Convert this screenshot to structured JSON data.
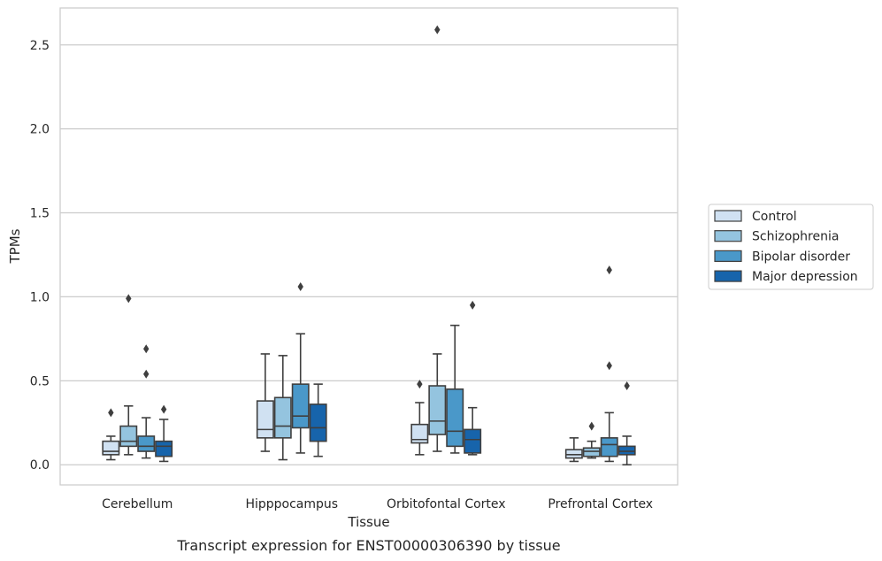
{
  "chart_data": {
    "type": "box",
    "title": "",
    "caption": "Transcript expression for ENST00000306390 by tissue",
    "xlabel": "Tissue",
    "ylabel": "TPMs",
    "ylim": [
      -0.12,
      2.72
    ],
    "yticks": [
      "0.0",
      "0.5",
      "1.0",
      "1.5",
      "2.0",
      "2.5"
    ],
    "grid": "horizontal",
    "legend_position": "right",
    "categories": [
      "Cerebellum",
      "Hipppocampus",
      "Orbitofontal Cortex",
      "Prefrontal Cortex"
    ],
    "series": [
      {
        "name": "Control",
        "color": "#d0e1f2",
        "boxes": [
          {
            "whislo": 0.03,
            "q1": 0.06,
            "med": 0.08,
            "q3": 0.14,
            "whishi": 0.17,
            "fliers": [
              0.31
            ]
          },
          {
            "whislo": 0.08,
            "q1": 0.16,
            "med": 0.21,
            "q3": 0.38,
            "whishi": 0.66,
            "fliers": []
          },
          {
            "whislo": 0.06,
            "q1": 0.13,
            "med": 0.15,
            "q3": 0.24,
            "whishi": 0.37,
            "fliers": [
              0.48
            ]
          },
          {
            "whislo": 0.02,
            "q1": 0.04,
            "med": 0.06,
            "q3": 0.09,
            "whishi": 0.16,
            "fliers": []
          }
        ]
      },
      {
        "name": "Schizophrenia",
        "color": "#94c4df",
        "boxes": [
          {
            "whislo": 0.06,
            "q1": 0.11,
            "med": 0.14,
            "q3": 0.23,
            "whishi": 0.35,
            "fliers": [
              0.99
            ]
          },
          {
            "whislo": 0.03,
            "q1": 0.16,
            "med": 0.23,
            "q3": 0.4,
            "whishi": 0.65,
            "fliers": []
          },
          {
            "whislo": 0.08,
            "q1": 0.18,
            "med": 0.26,
            "q3": 0.47,
            "whishi": 0.66,
            "fliers": [
              2.59
            ]
          },
          {
            "whislo": 0.04,
            "q1": 0.05,
            "med": 0.08,
            "q3": 0.1,
            "whishi": 0.14,
            "fliers": [
              0.23
            ]
          }
        ]
      },
      {
        "name": "Bipolar disorder",
        "color": "#4a98c9",
        "boxes": [
          {
            "whislo": 0.04,
            "q1": 0.08,
            "med": 0.11,
            "q3": 0.17,
            "whishi": 0.28,
            "fliers": [
              0.54,
              0.69
            ]
          },
          {
            "whislo": 0.07,
            "q1": 0.22,
            "med": 0.29,
            "q3": 0.48,
            "whishi": 0.78,
            "fliers": [
              1.06
            ]
          },
          {
            "whislo": 0.07,
            "q1": 0.11,
            "med": 0.2,
            "q3": 0.45,
            "whishi": 0.83,
            "fliers": []
          },
          {
            "whislo": 0.02,
            "q1": 0.05,
            "med": 0.12,
            "q3": 0.16,
            "whishi": 0.31,
            "fliers": [
              0.59,
              1.16
            ]
          }
        ]
      },
      {
        "name": "Major depression",
        "color": "#1764ab",
        "boxes": [
          {
            "whislo": 0.02,
            "q1": 0.05,
            "med": 0.11,
            "q3": 0.14,
            "whishi": 0.27,
            "fliers": [
              0.33
            ]
          },
          {
            "whislo": 0.05,
            "q1": 0.14,
            "med": 0.22,
            "q3": 0.36,
            "whishi": 0.48,
            "fliers": []
          },
          {
            "whislo": 0.06,
            "q1": 0.07,
            "med": 0.15,
            "q3": 0.21,
            "whishi": 0.34,
            "fliers": [
              0.95
            ]
          },
          {
            "whislo": 0.0,
            "q1": 0.06,
            "med": 0.08,
            "q3": 0.11,
            "whishi": 0.17,
            "fliers": [
              0.47
            ]
          }
        ]
      }
    ]
  }
}
